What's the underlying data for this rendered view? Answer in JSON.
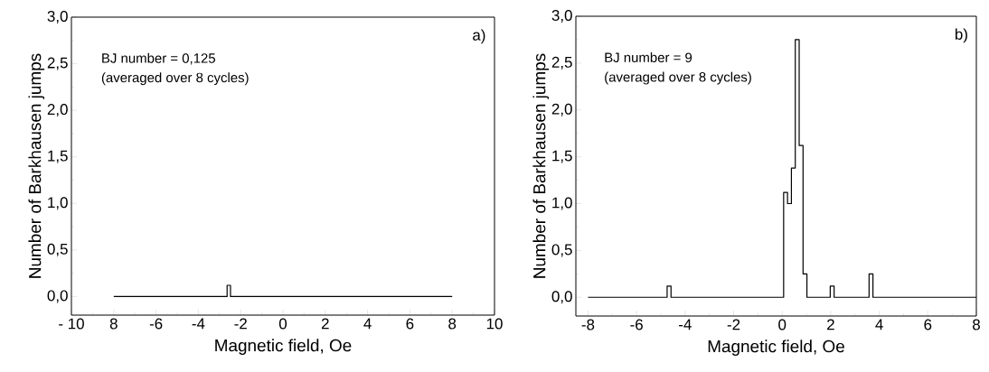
{
  "chart_data": [
    {
      "type": "step",
      "xlabel": "Magnetic field, Oe",
      "ylabel": "Number of Barkhausen jumps",
      "annotations": [
        "BJ number = 0,125",
        "(averaged over 8 cycles)",
        "a)"
      ],
      "x": [
        -8,
        -2.64,
        -2.48,
        8
      ],
      "series": [
        {
          "color": "#000000",
          "values": [
            0,
            0.12,
            0,
            0
          ]
        }
      ],
      "xlim": [
        -10,
        10
      ],
      "xticks": [
        {
          "value": -10,
          "label": "- 10"
        },
        {
          "value": -8,
          "label": "8"
        },
        -6,
        -4,
        -2,
        0,
        2,
        4,
        6,
        8,
        10
      ],
      "ylim": [
        -0.2,
        3
      ],
      "yticks": [
        {
          "value": 0,
          "label": "0,0"
        },
        {
          "value": 0.5,
          "label": "0,5"
        },
        {
          "value": 1,
          "label": "1,0"
        },
        {
          "value": 1.5,
          "label": "1,5"
        },
        {
          "value": 2,
          "label": "2,0"
        },
        {
          "value": 2.5,
          "label": "2,5"
        },
        {
          "value": 3,
          "label": "3,0"
        }
      ],
      "grid": false,
      "marker": "none",
      "line_style": "solid"
    },
    {
      "type": "step",
      "xlabel": "Magnetic field, Oe",
      "ylabel": "Number of Barkhausen jumps",
      "annotations": [
        "BJ number = 9",
        "(averaged over 8 cycles)",
        "b)"
      ],
      "x": [
        -8,
        -4.74,
        -4.58,
        0.06,
        0.22,
        0.38,
        0.54,
        0.7,
        0.86,
        1.02,
        1.98,
        2.14,
        3.58,
        3.74,
        8
      ],
      "series": [
        {
          "color": "#000000",
          "values": [
            0,
            0.12,
            0,
            1.12,
            1,
            1.38,
            2.75,
            1.62,
            0.25,
            0,
            0.12,
            0,
            0.25,
            0,
            0
          ]
        }
      ],
      "xlim": [
        -8.5,
        8
      ],
      "xticks": [
        -8,
        -6,
        -4,
        -2,
        0,
        2,
        4,
        6,
        8
      ],
      "ylim": [
        -0.2,
        3
      ],
      "yticks": [
        {
          "value": 0,
          "label": "0,0"
        },
        {
          "value": 0.5,
          "label": "0,5"
        },
        {
          "value": 1,
          "label": "1,0"
        },
        {
          "value": 1.5,
          "label": "1,5"
        },
        {
          "value": 2,
          "label": "2,0"
        },
        {
          "value": 2.5,
          "label": "2,5"
        },
        {
          "value": 3,
          "label": "3,0"
        }
      ],
      "grid": false,
      "marker": "none",
      "line_style": "solid"
    }
  ]
}
